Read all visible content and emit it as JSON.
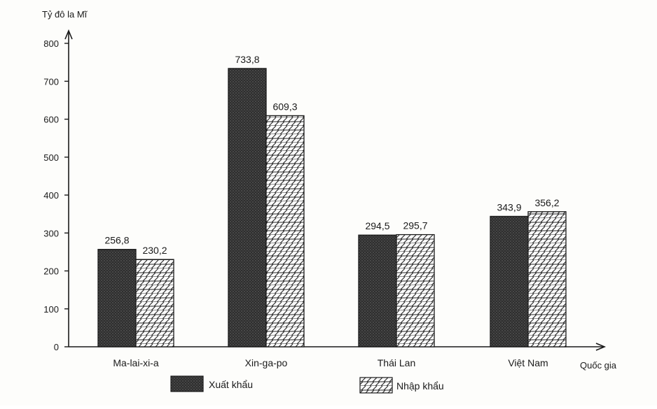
{
  "chart_data": {
    "type": "bar",
    "title": "",
    "ylabel": "Tỷ đô la Mĩ",
    "xlabel": "Quốc gia",
    "ylim": [
      0,
      800
    ],
    "yticks": [
      0,
      100,
      200,
      300,
      400,
      500,
      600,
      700,
      800
    ],
    "categories": [
      "Ma-lai-xi-a",
      "Xin-ga-po",
      "Thái Lan",
      "Việt Nam"
    ],
    "series": [
      {
        "name": "Xuất khẩu",
        "values": [
          256.8,
          733.8,
          294.5,
          343.9
        ],
        "labels": [
          "256,8",
          "733,8",
          "294,5",
          "343,9"
        ],
        "fill": "dark-dotted"
      },
      {
        "name": "Nhập khẩu",
        "values": [
          230.2,
          609.3,
          295.7,
          356.2
        ],
        "labels": [
          "230,2",
          "609,3",
          "295,7",
          "356,2"
        ],
        "fill": "brick-hatch"
      }
    ],
    "legend": "bottom",
    "grid": false,
    "colors": {
      "axis": "#1a1a1a",
      "export_bar": "#3a3a3a",
      "import_bar": "#ffffff"
    }
  }
}
